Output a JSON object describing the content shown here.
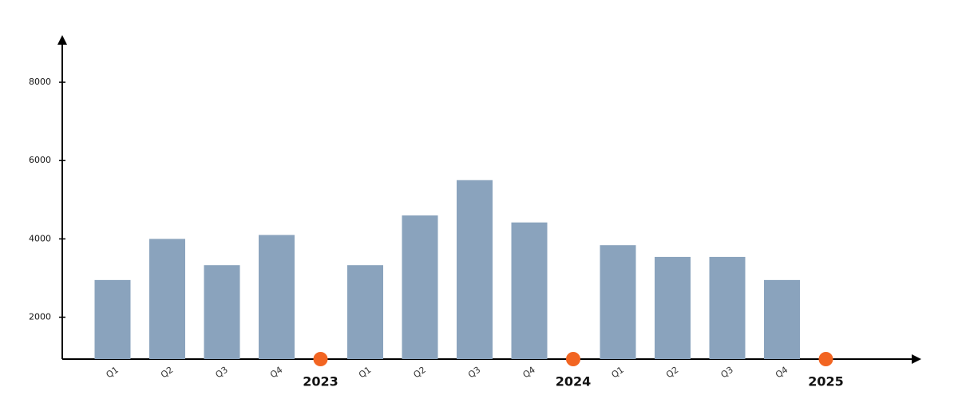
{
  "chart_data": {
    "type": "bar",
    "categories": [
      "Q1",
      "Q2",
      "Q3",
      "Q4",
      "Q1",
      "Q2",
      "Q3",
      "Q4",
      "Q1",
      "Q2",
      "Q3",
      "Q4"
    ],
    "years": [
      "2023",
      "2024",
      "2025"
    ],
    "values": [
      2950,
      4000,
      3330,
      4100,
      3330,
      4600,
      5500,
      4420,
      3840,
      3540,
      3540,
      2950
    ],
    "color": "#8aa3bd",
    "marker_color": "#f26522",
    "ylim": [
      930,
      9000
    ],
    "yticks": [
      2000,
      4000,
      6000,
      8000
    ]
  }
}
